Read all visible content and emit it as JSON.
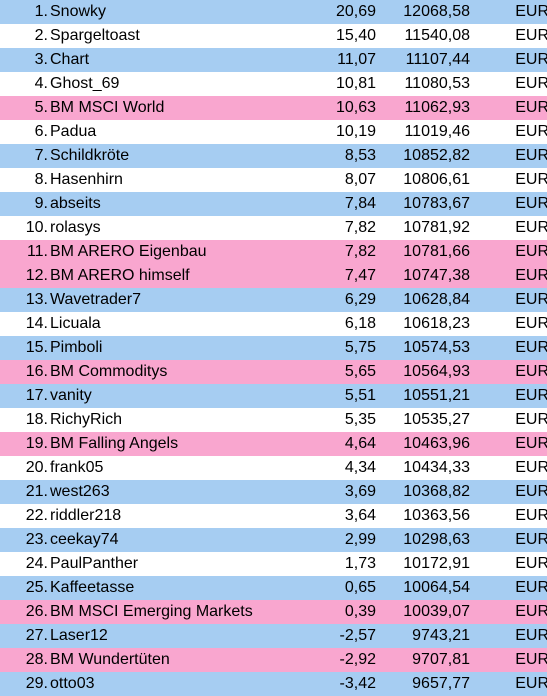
{
  "colors": {
    "blue": "#a6cdf2",
    "white": "#ffffff",
    "pink": "#f9a6cf"
  },
  "rows": [
    {
      "rank": "1.",
      "name": "Snowky",
      "pct": "20,69",
      "value": "12068,58",
      "currency": "EUR",
      "color": "blue"
    },
    {
      "rank": "2.",
      "name": "Spargeltoast",
      "pct": "15,40",
      "value": "11540,08",
      "currency": "EUR",
      "color": "white"
    },
    {
      "rank": "3.",
      "name": "Chart",
      "pct": "11,07",
      "value": "11107,44",
      "currency": "EUR",
      "color": "blue"
    },
    {
      "rank": "4.",
      "name": "Ghost_69",
      "pct": "10,81",
      "value": "11080,53",
      "currency": "EUR",
      "color": "white"
    },
    {
      "rank": "5.",
      "name": "BM MSCI World",
      "pct": "10,63",
      "value": "11062,93",
      "currency": "EUR",
      "color": "pink"
    },
    {
      "rank": "6.",
      "name": "Padua",
      "pct": "10,19",
      "value": "11019,46",
      "currency": "EUR",
      "color": "white"
    },
    {
      "rank": "7.",
      "name": "Schildkröte",
      "pct": "8,53",
      "value": "10852,82",
      "currency": "EUR",
      "color": "blue"
    },
    {
      "rank": "8.",
      "name": "Hasenhirn",
      "pct": "8,07",
      "value": "10806,61",
      "currency": "EUR",
      "color": "white"
    },
    {
      "rank": "9.",
      "name": "abseits",
      "pct": "7,84",
      "value": "10783,67",
      "currency": "EUR",
      "color": "blue"
    },
    {
      "rank": "10.",
      "name": "rolasys",
      "pct": "7,82",
      "value": "10781,92",
      "currency": "EUR",
      "color": "white"
    },
    {
      "rank": "11.",
      "name": "BM ARERO Eigenbau",
      "pct": "7,82",
      "value": "10781,66",
      "currency": "EUR",
      "color": "pink"
    },
    {
      "rank": "12.",
      "name": "BM ARERO himself",
      "pct": "7,47",
      "value": "10747,38",
      "currency": "EUR",
      "color": "pink"
    },
    {
      "rank": "13.",
      "name": "Wavetrader7",
      "pct": "6,29",
      "value": "10628,84",
      "currency": "EUR",
      "color": "blue"
    },
    {
      "rank": "14.",
      "name": "Licuala",
      "pct": "6,18",
      "value": "10618,23",
      "currency": "EUR",
      "color": "white"
    },
    {
      "rank": "15.",
      "name": "Pimboli",
      "pct": "5,75",
      "value": "10574,53",
      "currency": "EUR",
      "color": "blue"
    },
    {
      "rank": "16.",
      "name": "BM Commoditys",
      "pct": "5,65",
      "value": "10564,93",
      "currency": "EUR",
      "color": "pink"
    },
    {
      "rank": "17.",
      "name": "vanity",
      "pct": "5,51",
      "value": "10551,21",
      "currency": "EUR",
      "color": "blue"
    },
    {
      "rank": "18.",
      "name": "RichyRich",
      "pct": "5,35",
      "value": "10535,27",
      "currency": "EUR",
      "color": "white"
    },
    {
      "rank": "19.",
      "name": "BM Falling Angels",
      "pct": "4,64",
      "value": "10463,96",
      "currency": "EUR",
      "color": "pink"
    },
    {
      "rank": "20.",
      "name": "frank05",
      "pct": "4,34",
      "value": "10434,33",
      "currency": "EUR",
      "color": "white"
    },
    {
      "rank": "21.",
      "name": "west263",
      "pct": "3,69",
      "value": "10368,82",
      "currency": "EUR",
      "color": "blue"
    },
    {
      "rank": "22.",
      "name": "riddler218",
      "pct": "3,64",
      "value": "10363,56",
      "currency": "EUR",
      "color": "white"
    },
    {
      "rank": "23.",
      "name": "ceekay74",
      "pct": "2,99",
      "value": "10298,63",
      "currency": "EUR",
      "color": "blue"
    },
    {
      "rank": "24.",
      "name": "PaulPanther",
      "pct": "1,73",
      "value": "10172,91",
      "currency": "EUR",
      "color": "white"
    },
    {
      "rank": "25.",
      "name": "Kaffeetasse",
      "pct": "0,65",
      "value": "10064,54",
      "currency": "EUR",
      "color": "blue"
    },
    {
      "rank": "26.",
      "name": "BM MSCI Emerging Markets",
      "pct": "0,39",
      "value": "10039,07",
      "currency": "EUR",
      "color": "pink"
    },
    {
      "rank": "27.",
      "name": "Laser12",
      "pct": "-2,57",
      "value": "9743,21",
      "currency": "EUR",
      "color": "blue"
    },
    {
      "rank": "28.",
      "name": "BM Wundertüten",
      "pct": "-2,92",
      "value": "9707,81",
      "currency": "EUR",
      "color": "pink"
    },
    {
      "rank": "29.",
      "name": "otto03",
      "pct": "-3,42",
      "value": "9657,77",
      "currency": "EUR",
      "color": "blue"
    }
  ]
}
